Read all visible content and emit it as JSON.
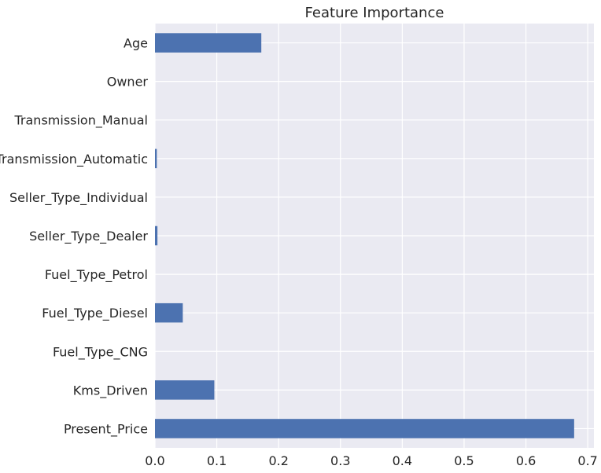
{
  "chart_data": {
    "type": "bar",
    "orientation": "horizontal",
    "title": "Feature Importance",
    "xlabel": "",
    "ylabel": "",
    "categories": [
      "Age",
      "Owner",
      "Transmission_Manual",
      "Transmission_Automatic",
      "Seller_Type_Individual",
      "Seller_Type_Dealer",
      "Fuel_Type_Petrol",
      "Fuel_Type_Diesel",
      "Fuel_Type_CNG",
      "Kms_Driven",
      "Present_Price"
    ],
    "values": [
      0.172,
      0.0,
      0.0,
      0.003,
      0.0,
      0.004,
      0.0,
      0.045,
      0.0,
      0.096,
      0.678
    ],
    "xlim": [
      0.0,
      0.71
    ],
    "xticks": [
      0.0,
      0.1,
      0.2,
      0.3,
      0.4,
      0.5,
      0.6,
      0.7
    ],
    "xtick_labels": [
      "0.0",
      "0.1",
      "0.2",
      "0.3",
      "0.4",
      "0.5",
      "0.6",
      "0.7"
    ],
    "grid": true,
    "colors": {
      "bar": "#4c72b0",
      "background": "#eaeaf2",
      "grid": "#ffffff",
      "text": "#262626"
    }
  }
}
